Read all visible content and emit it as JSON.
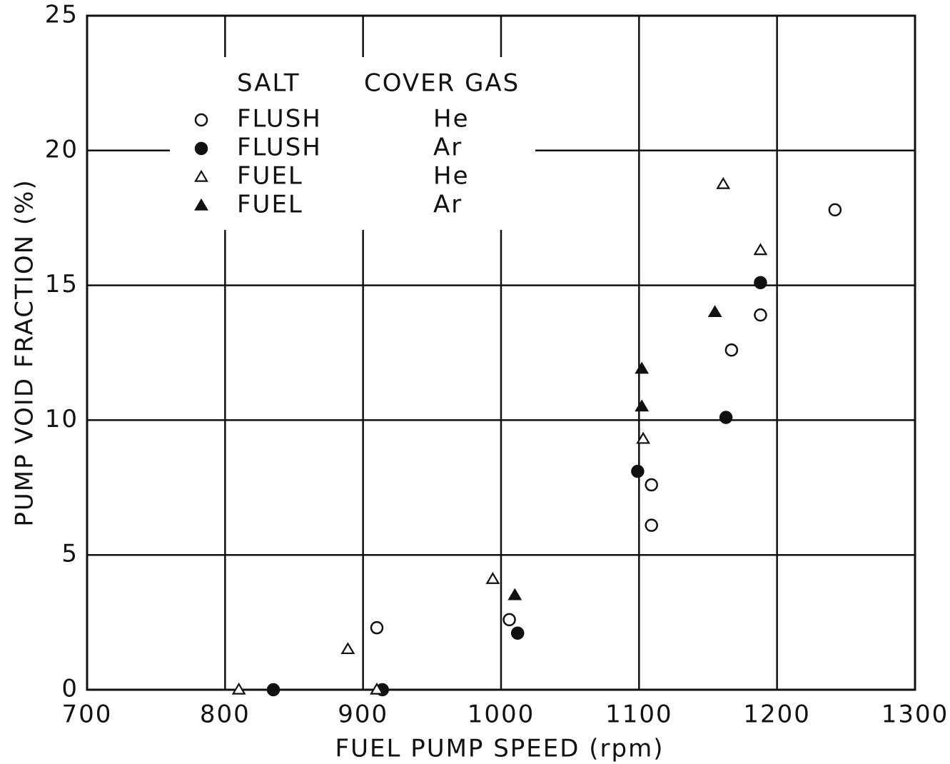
{
  "chart_data": {
    "type": "scatter",
    "x_label": "FUEL PUMP SPEED (rpm)",
    "y_label": "PUMP VOID FRACTION (%)",
    "xlim": [
      700,
      1300
    ],
    "xticks": [
      700,
      800,
      900,
      1000,
      1100,
      1200,
      1300
    ],
    "ylim": [
      0,
      25
    ],
    "yticks": [
      0,
      5,
      10,
      15,
      20,
      25
    ],
    "grid": true,
    "legend_position": "upper left",
    "legend_headers": [
      "SALT",
      "COVER GAS"
    ],
    "color": "#111111",
    "series": [
      {
        "name": "FLUSH",
        "gas": "He",
        "marker": "circle",
        "filled": false,
        "x": [
          1242,
          1188,
          1167,
          1109,
          1109,
          910,
          1006
        ],
        "values": [
          17.8,
          13.9,
          12.6,
          7.6,
          6.1,
          2.3,
          2.6
        ]
      },
      {
        "name": "FLUSH",
        "gas": "Ar",
        "marker": "circle",
        "filled": true,
        "x": [
          1188,
          1163,
          1099,
          1012,
          835,
          914
        ],
        "values": [
          15.1,
          10.1,
          8.1,
          2.1,
          0,
          0
        ]
      },
      {
        "name": "FUEL",
        "gas": "He",
        "marker": "triangle",
        "filled": false,
        "x": [
          1161,
          1188,
          1103,
          994,
          889,
          810,
          910
        ],
        "values": [
          18.75,
          16.3,
          9.3,
          4.1,
          1.5,
          0,
          0
        ]
      },
      {
        "name": "FUEL",
        "gas": "Ar",
        "marker": "triangle",
        "filled": true,
        "x": [
          1155,
          1102,
          1102,
          1010
        ],
        "values": [
          14.0,
          11.9,
          10.5,
          3.5
        ]
      }
    ]
  }
}
